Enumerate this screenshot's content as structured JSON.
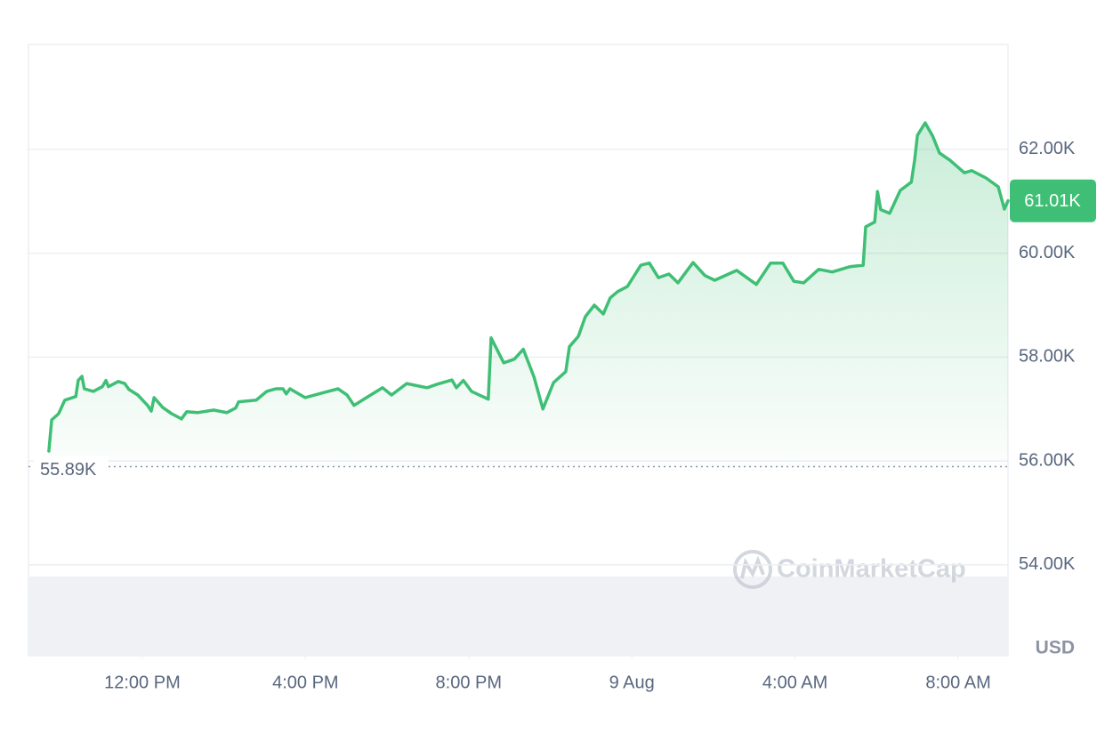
{
  "chart_data": {
    "type": "line",
    "color": "#3fbf75",
    "x": [
      9.71,
      9.78,
      9.95,
      10.1,
      10.37,
      10.43,
      10.52,
      10.58,
      10.8,
      11.02,
      11.11,
      11.17,
      11.41,
      11.57,
      11.67,
      11.89,
      12.13,
      12.22,
      12.29,
      12.5,
      12.72,
      12.96,
      13.09,
      13.35,
      13.75,
      14.07,
      14.29,
      14.36,
      14.79,
      15.05,
      15.27,
      15.45,
      15.53,
      15.62,
      15.99,
      16.41,
      16.8,
      17.02,
      17.19,
      17.45,
      17.89,
      18.11,
      18.48,
      18.98,
      19.24,
      19.59,
      19.7,
      19.87,
      20.07,
      20.48,
      20.55,
      20.86,
      21.12,
      21.34,
      21.6,
      21.82,
      22.08,
      22.38,
      22.47,
      22.69,
      22.86,
      23.08,
      23.3,
      23.47,
      23.65,
      23.89,
      24.22,
      24.43,
      24.65,
      24.91,
      25.13,
      25.5,
      25.79,
      26.03,
      26.57,
      27.05,
      27.4,
      27.7,
      27.97,
      28.21,
      28.58,
      28.91,
      29.34,
      29.67,
      29.73,
      29.95,
      30.02,
      30.1,
      30.32,
      30.58,
      30.85,
      30.93,
      31.0,
      31.19,
      31.37,
      31.54,
      31.8,
      32.15,
      32.33,
      32.68,
      32.98,
      33.13,
      33.22
    ],
    "values": [
      56190,
      56790,
      56910,
      57170,
      57240,
      57550,
      57630,
      57390,
      57340,
      57430,
      57550,
      57430,
      57530,
      57490,
      57380,
      57270,
      57070,
      56960,
      57220,
      57030,
      56910,
      56810,
      56950,
      56930,
      56980,
      56930,
      57020,
      57140,
      57170,
      57340,
      57390,
      57390,
      57290,
      57390,
      57220,
      57310,
      57390,
      57270,
      57070,
      57200,
      57410,
      57270,
      57490,
      57410,
      57480,
      57560,
      57410,
      57550,
      57340,
      57190,
      58370,
      57890,
      57960,
      58150,
      57620,
      57000,
      57510,
      57720,
      58200,
      58400,
      58780,
      59000,
      58830,
      59140,
      59260,
      59360,
      59770,
      59810,
      59530,
      59600,
      59430,
      59820,
      59570,
      59480,
      59670,
      59400,
      59810,
      59810,
      59460,
      59430,
      59690,
      59640,
      59740,
      59770,
      60510,
      60600,
      61190,
      60840,
      60770,
      61210,
      61370,
      61790,
      62270,
      62510,
      62260,
      61930,
      61790,
      61550,
      61590,
      61450,
      61280,
      60850,
      61010
    ],
    "xlim": [
      9.21,
      33.22
    ],
    "xticks": [
      {
        "value": 12,
        "label": "12:00 PM"
      },
      {
        "value": 16,
        "label": "4:00 PM"
      },
      {
        "value": 20,
        "label": "8:00 PM"
      },
      {
        "value": 24,
        "label": "9 Aug"
      },
      {
        "value": 28,
        "label": "4:00 AM"
      },
      {
        "value": 32,
        "label": "8:00 AM"
      }
    ],
    "ylim": [
      52250,
      64020
    ],
    "yticks": [
      {
        "value": 54000,
        "label": "54.00K"
      },
      {
        "value": 56000,
        "label": "56.00K"
      },
      {
        "value": 58000,
        "label": "58.00K"
      },
      {
        "value": 60000,
        "label": "60.00K"
      },
      {
        "value": 62000,
        "label": "62.00K"
      }
    ],
    "grid": true,
    "reference_line": {
      "value": 55890,
      "label": "55.89K"
    },
    "last_price": {
      "value": 61010,
      "label": "61.01K"
    },
    "currency_label": "USD",
    "watermark": "CoinMarketCap"
  }
}
